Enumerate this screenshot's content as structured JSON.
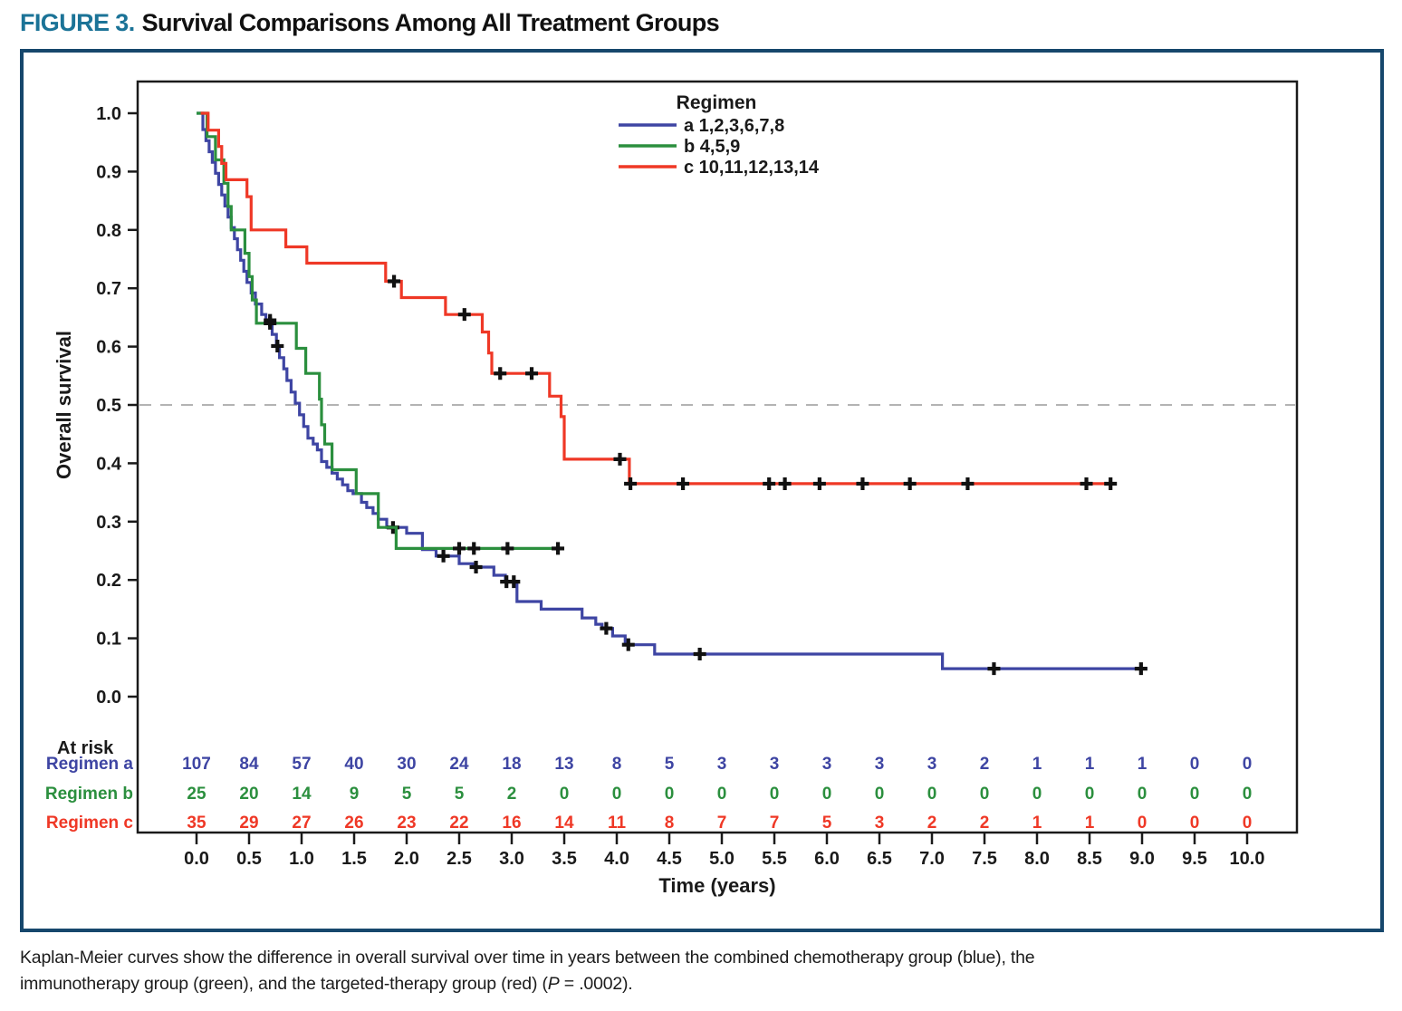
{
  "figure": {
    "label": "FIGURE 3.",
    "title": "Survival Comparisons Among All Treatment Groups"
  },
  "caption": {
    "line1": "Kaplan-Meier curves show the difference in overall survival over time in years between the combined chemotherapy group (blue), the",
    "line2_before_p": "immunotherapy group (green), and the targeted-therapy group (red) (",
    "p_symbol": "P",
    "line2_after_p": " = .0002)."
  },
  "colors": {
    "figure_label": "#1b7397",
    "figure_border": "#16476c",
    "axis": "#1a1a1a",
    "reference_line": "#b3b3b3",
    "censor_mark": "#111111",
    "regimen_a": "#3e45a3",
    "regimen_b": "#2b8f3e",
    "regimen_c": "#ef3826"
  },
  "chart_data": {
    "type": "line",
    "subtype": "kaplan-meier-step",
    "xlabel": "Time (years)",
    "ylabel": "Overall survival",
    "xlim": [
      0,
      10
    ],
    "xtick_step": 0.5,
    "ylim": [
      0.0,
      1.0
    ],
    "ytick_step": 0.1,
    "reference_line_y": 0.5,
    "grid": false,
    "legend": {
      "title": "Regimen",
      "position": "top-center-inside",
      "entries": [
        {
          "series": "a",
          "label": "a 1,2,3,6,7,8"
        },
        {
          "series": "b",
          "label": "b 4,5,9"
        },
        {
          "series": "c",
          "label": "c 10,11,12,13,14"
        }
      ]
    },
    "series": [
      {
        "name": "Regimen a",
        "legend_label": "a 1,2,3,6,7,8",
        "color": "#3e45a3",
        "end": 9.05,
        "steps": [
          [
            0.0,
            1.0
          ],
          [
            0.06,
            0.972
          ],
          [
            0.09,
            0.953
          ],
          [
            0.12,
            0.934
          ],
          [
            0.15,
            0.916
          ],
          [
            0.18,
            0.897
          ],
          [
            0.21,
            0.878
          ],
          [
            0.24,
            0.86
          ],
          [
            0.27,
            0.841
          ],
          [
            0.3,
            0.822
          ],
          [
            0.33,
            0.804
          ],
          [
            0.36,
            0.785
          ],
          [
            0.39,
            0.766
          ],
          [
            0.42,
            0.748
          ],
          [
            0.45,
            0.729
          ],
          [
            0.48,
            0.71
          ],
          [
            0.52,
            0.692
          ],
          [
            0.56,
            0.673
          ],
          [
            0.62,
            0.655
          ],
          [
            0.66,
            0.645
          ],
          [
            0.72,
            0.621
          ],
          [
            0.76,
            0.601
          ],
          [
            0.79,
            0.581
          ],
          [
            0.83,
            0.562
          ],
          [
            0.86,
            0.542
          ],
          [
            0.9,
            0.522
          ],
          [
            0.94,
            0.503
          ],
          [
            0.98,
            0.483
          ],
          [
            1.02,
            0.463
          ],
          [
            1.06,
            0.443
          ],
          [
            1.11,
            0.433
          ],
          [
            1.15,
            0.423
          ],
          [
            1.19,
            0.403
          ],
          [
            1.24,
            0.393
          ],
          [
            1.29,
            0.383
          ],
          [
            1.34,
            0.373
          ],
          [
            1.39,
            0.363
          ],
          [
            1.44,
            0.353
          ],
          [
            1.49,
            0.348
          ],
          [
            1.57,
            0.333
          ],
          [
            1.62,
            0.324
          ],
          [
            1.68,
            0.314
          ],
          [
            1.73,
            0.304
          ],
          [
            1.81,
            0.29
          ],
          [
            2.0,
            0.28
          ],
          [
            2.15,
            0.252
          ],
          [
            2.28,
            0.241
          ],
          [
            2.5,
            0.228
          ],
          [
            2.63,
            0.222
          ],
          [
            2.83,
            0.208
          ],
          [
            2.94,
            0.197
          ],
          [
            3.05,
            0.163
          ],
          [
            3.28,
            0.15
          ],
          [
            3.67,
            0.135
          ],
          [
            3.8,
            0.124
          ],
          [
            3.86,
            0.117
          ],
          [
            3.96,
            0.104
          ],
          [
            4.08,
            0.089
          ],
          [
            4.36,
            0.073
          ],
          [
            7.1,
            0.048
          ]
        ],
        "censors": [
          [
            0.7,
            0.645
          ],
          [
            0.77,
            0.601
          ],
          [
            1.87,
            0.29
          ],
          [
            2.35,
            0.241
          ],
          [
            2.66,
            0.222
          ],
          [
            2.95,
            0.197
          ],
          [
            3.02,
            0.197
          ],
          [
            3.9,
            0.117
          ],
          [
            4.11,
            0.089
          ],
          [
            4.79,
            0.073
          ],
          [
            7.59,
            0.048
          ],
          [
            8.99,
            0.048
          ]
        ]
      },
      {
        "name": "Regimen b",
        "legend_label": "b 4,5,9",
        "color": "#2b8f3e",
        "end": 3.47,
        "steps": [
          [
            0.0,
            1.0
          ],
          [
            0.1,
            0.96
          ],
          [
            0.18,
            0.92
          ],
          [
            0.26,
            0.88
          ],
          [
            0.3,
            0.84
          ],
          [
            0.33,
            0.8
          ],
          [
            0.46,
            0.76
          ],
          [
            0.5,
            0.72
          ],
          [
            0.53,
            0.68
          ],
          [
            0.57,
            0.64
          ],
          [
            0.95,
            0.597
          ],
          [
            1.04,
            0.554
          ],
          [
            1.17,
            0.51
          ],
          [
            1.19,
            0.466
          ],
          [
            1.22,
            0.433
          ],
          [
            1.29,
            0.389
          ],
          [
            1.52,
            0.348
          ],
          [
            1.73,
            0.29
          ],
          [
            1.9,
            0.254
          ]
        ],
        "censors": [
          [
            0.7,
            0.64
          ],
          [
            2.5,
            0.254
          ],
          [
            2.64,
            0.254
          ],
          [
            2.96,
            0.254
          ],
          [
            3.44,
            0.254
          ]
        ]
      },
      {
        "name": "Regimen c",
        "legend_label": "c 10,11,12,13,14",
        "color": "#ef3826",
        "end": 8.7,
        "steps": [
          [
            0.04,
            1.0
          ],
          [
            0.11,
            0.971
          ],
          [
            0.21,
            0.943
          ],
          [
            0.24,
            0.914
          ],
          [
            0.28,
            0.886
          ],
          [
            0.48,
            0.857
          ],
          [
            0.52,
            0.8
          ],
          [
            0.85,
            0.771
          ],
          [
            1.05,
            0.743
          ],
          [
            1.8,
            0.712
          ],
          [
            1.95,
            0.684
          ],
          [
            2.37,
            0.655
          ],
          [
            2.72,
            0.625
          ],
          [
            2.78,
            0.589
          ],
          [
            2.81,
            0.554
          ],
          [
            3.36,
            0.515
          ],
          [
            3.47,
            0.48
          ],
          [
            3.5,
            0.407
          ],
          [
            4.12,
            0.365
          ]
        ],
        "censors": [
          [
            1.88,
            0.712
          ],
          [
            2.55,
            0.655
          ],
          [
            2.89,
            0.554
          ],
          [
            3.19,
            0.554
          ],
          [
            4.03,
            0.407
          ],
          [
            4.13,
            0.365
          ],
          [
            4.63,
            0.365
          ],
          [
            5.45,
            0.365
          ],
          [
            5.6,
            0.365
          ],
          [
            5.93,
            0.365
          ],
          [
            6.34,
            0.365
          ],
          [
            6.79,
            0.365
          ],
          [
            7.34,
            0.365
          ],
          [
            8.47,
            0.365
          ],
          [
            8.7,
            0.365
          ]
        ]
      }
    ],
    "at_risk": {
      "header": "At risk",
      "times": [
        0,
        0.5,
        1,
        1.5,
        2,
        2.5,
        3,
        3.5,
        4,
        4.5,
        5,
        5.5,
        6,
        6.5,
        7,
        7.5,
        8,
        8.5,
        9,
        9.5,
        10
      ],
      "rows": [
        {
          "label": "Regimen a",
          "color": "#3e45a3",
          "values": [
            107,
            84,
            57,
            40,
            30,
            24,
            18,
            13,
            8,
            5,
            3,
            3,
            3,
            3,
            3,
            2,
            1,
            1,
            1,
            0,
            0
          ]
        },
        {
          "label": "Regimen b",
          "color": "#2b8f3e",
          "values": [
            25,
            20,
            14,
            9,
            5,
            5,
            2,
            0,
            0,
            0,
            0,
            0,
            0,
            0,
            0,
            0,
            0,
            0,
            0,
            0,
            0
          ]
        },
        {
          "label": "Regimen c",
          "color": "#ef3826",
          "values": [
            35,
            29,
            27,
            26,
            23,
            22,
            16,
            14,
            11,
            8,
            7,
            7,
            5,
            3,
            2,
            2,
            1,
            1,
            0,
            0,
            0
          ]
        }
      ]
    }
  }
}
